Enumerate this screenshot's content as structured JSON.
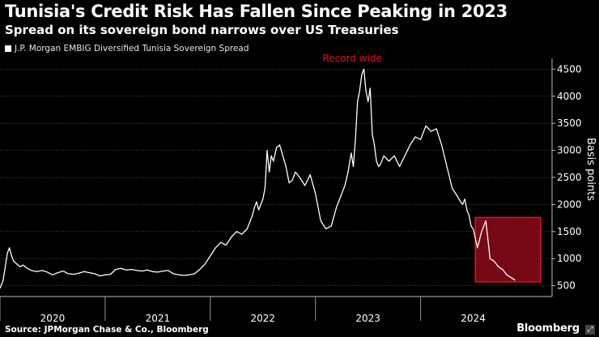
{
  "header": {
    "title": "Tunisia's Credit Risk Has Fallen Since Peaking in 2023",
    "subtitle": "Spread on its sovereign bond narrows over US Treasuries"
  },
  "footer": {
    "source": "Source: JPMorgan Chase & Co., Bloomberg",
    "brand": "Bloomberg"
  },
  "colors": {
    "background": "#000000",
    "line": "#ffffff",
    "annotation": "#e3121f",
    "highlight_fill": "#8b0a17",
    "gridline": "#5a5a5a"
  },
  "chart_data": {
    "type": "line",
    "title": "Tunisia's Credit Risk Has Fallen Since Peaking in 2023",
    "subtitle": "Spread on its sovereign bond narrows over US Treasuries",
    "ylabel": "Basis points",
    "y_axis_position": "right",
    "ylim": [
      300,
      4700
    ],
    "yticks": [
      500,
      1000,
      1500,
      2000,
      2500,
      3000,
      3500,
      4000,
      4500
    ],
    "xlim": [
      2019.5,
      2024.75
    ],
    "x_tick_labels": [
      {
        "label": "2020",
        "x": 2020.0
      },
      {
        "label": "2021",
        "x": 2021.0
      },
      {
        "label": "2022",
        "x": 2022.0
      },
      {
        "label": "2023",
        "x": 2023.0
      },
      {
        "label": "2024",
        "x": 2024.0
      }
    ],
    "x_boundaries": [
      2019.5,
      2020.5,
      2021.5,
      2022.5,
      2023.5
    ],
    "grid": "horizontal-dotted",
    "series": [
      {
        "name": "J.P. Morgan EMBIG Diversified Tunisia Sovereign Spread",
        "x": [
          2019.5,
          2019.53,
          2019.55,
          2019.57,
          2019.59,
          2019.61,
          2019.63,
          2019.66,
          2019.69,
          2019.72,
          2019.76,
          2019.8,
          2019.85,
          2019.9,
          2019.95,
          2020.0,
          2020.05,
          2020.1,
          2020.15,
          2020.2,
          2020.25,
          2020.3,
          2020.35,
          2020.4,
          2020.45,
          2020.5,
          2020.55,
          2020.6,
          2020.65,
          2020.7,
          2020.75,
          2020.8,
          2020.85,
          2020.9,
          2020.95,
          2021.0,
          2021.05,
          2021.1,
          2021.15,
          2021.2,
          2021.25,
          2021.3,
          2021.35,
          2021.4,
          2021.45,
          2021.5,
          2021.55,
          2021.6,
          2021.65,
          2021.7,
          2021.75,
          2021.8,
          2021.85,
          2021.88,
          2021.9,
          2021.92,
          2021.94,
          2021.96,
          2021.98,
          2022.0,
          2022.02,
          2022.04,
          2022.06,
          2022.08,
          2022.1,
          2022.13,
          2022.16,
          2022.19,
          2022.22,
          2022.25,
          2022.28,
          2022.31,
          2022.35,
          2022.4,
          2022.45,
          2022.5,
          2022.55,
          2022.6,
          2022.65,
          2022.7,
          2022.75,
          2022.78,
          2022.81,
          2022.84,
          2022.86,
          2022.88,
          2022.9,
          2022.92,
          2022.94,
          2022.96,
          2022.98,
          2023.0,
          2023.02,
          2023.04,
          2023.06,
          2023.08,
          2023.1,
          2023.12,
          2023.15,
          2023.2,
          2023.25,
          2023.3,
          2023.35,
          2023.4,
          2023.45,
          2023.5,
          2023.55,
          2023.6,
          2023.65,
          2023.7,
          2023.75,
          2023.8,
          2023.85,
          2023.88,
          2023.9,
          2023.92,
          2023.94,
          2023.96,
          2023.98,
          2024.0,
          2024.04,
          2024.08,
          2024.12,
          2024.16,
          2024.2,
          2024.24,
          2024.28,
          2024.32,
          2024.36,
          2024.4
        ],
        "y": [
          450,
          600,
          850,
          1100,
          1200,
          1050,
          950,
          900,
          850,
          880,
          820,
          780,
          760,
          780,
          750,
          700,
          740,
          770,
          720,
          710,
          730,
          760,
          740,
          720,
          680,
          700,
          710,
          800,
          820,
          790,
          800,
          780,
          770,
          790,
          760,
          750,
          770,
          780,
          720,
          700,
          690,
          700,
          720,
          800,
          900,
          1050,
          1200,
          1300,
          1250,
          1400,
          1500,
          1450,
          1550,
          1700,
          1800,
          1950,
          2050,
          1900,
          2000,
          2100,
          2300,
          3000,
          2600,
          2900,
          2800,
          3050,
          3100,
          2900,
          2700,
          2400,
          2450,
          2600,
          2500,
          2350,
          2550,
          2200,
          1700,
          1550,
          1600,
          1950,
          2200,
          2350,
          2600,
          2950,
          2700,
          3200,
          3900,
          4100,
          4400,
          4500,
          4100,
          3900,
          4150,
          3300,
          3100,
          2800,
          2700,
          2750,
          2900,
          2800,
          2900,
          2700,
          2900,
          3100,
          3250,
          3200,
          3450,
          3350,
          3400,
          3100,
          2700,
          2300,
          2150,
          2050,
          2000,
          2100,
          1900,
          1800,
          1600,
          1550,
          1200,
          1500,
          1700,
          1000,
          950,
          850,
          800,
          700,
          650,
          600
        ]
      }
    ],
    "annotations": [
      {
        "text": "Record wide",
        "x": 2022.85,
        "y": 4640
      },
      {
        "type": "highlight-box",
        "x": [
          2024.02,
          2024.64
        ],
        "y": [
          570,
          1760
        ]
      }
    ]
  }
}
